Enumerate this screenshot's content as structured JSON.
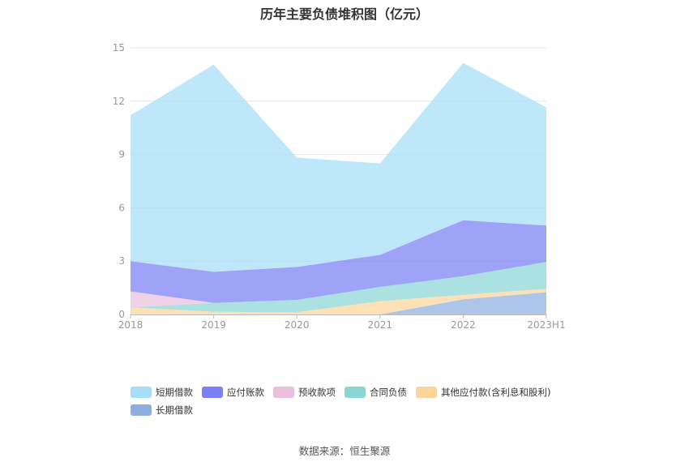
{
  "chart_data": {
    "type": "area",
    "stacked": true,
    "title": "历年主要负债堆积图（亿元）",
    "categories": [
      "2018",
      "2019",
      "2020",
      "2021",
      "2022",
      "2023H1"
    ],
    "ylim": [
      0,
      15
    ],
    "yticks": [
      "0",
      "3",
      "6",
      "9",
      "12",
      "15"
    ],
    "grid": true,
    "legend_position": "bottom",
    "series": [
      {
        "name": "长期借款",
        "color": "#8eaee0",
        "values": [
          0,
          0,
          0,
          0,
          0.85,
          1.25
        ]
      },
      {
        "name": "其他应付款(含利息和股利)",
        "color": "#fcd59a",
        "values": [
          0.4,
          0.15,
          0.12,
          0.75,
          0.25,
          0.2
        ]
      },
      {
        "name": "合同负债",
        "color": "#8ad6d6",
        "values": [
          0,
          0.5,
          0.7,
          0.8,
          1.05,
          1.5
        ]
      },
      {
        "name": "预收款项",
        "color": "#eabfdd",
        "values": [
          0.9,
          0,
          0,
          0,
          0,
          0
        ]
      },
      {
        "name": "应付账款",
        "color": "#7a7ff5",
        "values": [
          1.7,
          1.75,
          1.85,
          1.8,
          3.15,
          2.05
        ]
      },
      {
        "name": "短期借款",
        "color": "#a6def8",
        "values": [
          8.2,
          11.65,
          6.15,
          5.15,
          8.85,
          6.65
        ]
      }
    ]
  },
  "legend": {
    "row1": [
      {
        "label": "短期借款",
        "color": "#a6def8"
      },
      {
        "label": "应付账款",
        "color": "#7a7ff5"
      },
      {
        "label": "预收款项",
        "color": "#eabfdd"
      },
      {
        "label": "合同负债",
        "color": "#8ad6d6"
      },
      {
        "label": "其他应付款(含利息和股利)",
        "color": "#fcd59a"
      }
    ],
    "row2": [
      {
        "label": "长期借款",
        "color": "#8eaee0"
      }
    ]
  },
  "source": "数据来源：恒生聚源"
}
